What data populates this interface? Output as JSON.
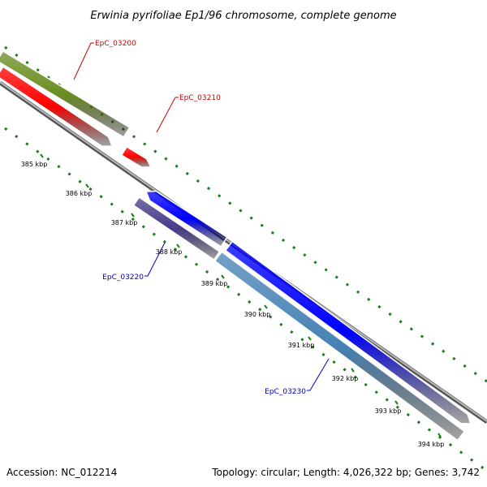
{
  "title": "Erwinia pyrifoliae Ep1/96 chromosome, complete genome",
  "footer": {
    "accession": "Accession: NC_012214",
    "summary": "Topology: circular; Length: 4,026,322 bp; Genes: 3,742"
  },
  "colors": {
    "backbone": "#8a8a8a",
    "tick": "#1a7f1a",
    "red_label": "#cc0000",
    "blue_label": "#0000bb",
    "olive": "#6b8e23",
    "red": "#ff0000",
    "blue": "#0000ff",
    "purple": "#483d8b",
    "steelblue": "#4682b4"
  },
  "ticks": [
    {
      "label": "385 kbp"
    },
    {
      "label": "386 kbp"
    },
    {
      "label": "387 kbp"
    },
    {
      "label": "388 kbp"
    },
    {
      "label": "389 kbp"
    },
    {
      "label": "390 kbp"
    },
    {
      "label": "391 kbp"
    },
    {
      "label": "392 kbp"
    },
    {
      "label": "393 kbp"
    },
    {
      "label": "394 kbp"
    }
  ],
  "genes": [
    {
      "label": "EpC_03200",
      "color": "olive",
      "label_color": "red_label"
    },
    {
      "label": "EpC_03210",
      "color": "red",
      "label_color": "red_label"
    },
    {
      "label": "EpC_03220",
      "color": "purple",
      "label_color": "blue_label"
    },
    {
      "label": "EpC_03230",
      "color": "steelblue",
      "label_color": "blue_label"
    },
    {
      "color": "red"
    },
    {
      "color": "blue"
    },
    {
      "color": "blue"
    }
  ]
}
